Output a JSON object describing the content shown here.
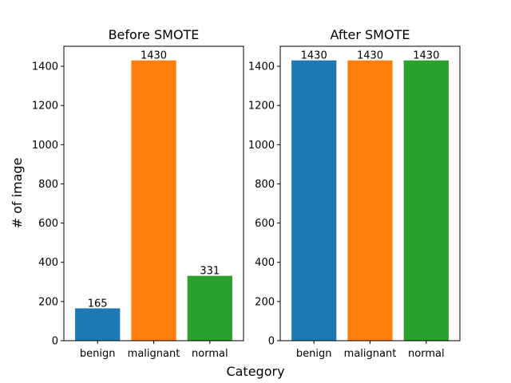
{
  "figure": {
    "ylabel": "# of image",
    "xlabel": "Category"
  },
  "chart_data": [
    {
      "type": "bar",
      "title": "Before SMOTE",
      "categories": [
        "benign",
        "malignant",
        "normal"
      ],
      "values": [
        165,
        1430,
        331
      ],
      "value_labels": [
        "165",
        "1430",
        "331"
      ],
      "colors": [
        "#1f77b4",
        "#ff7f0e",
        "#2ca02c"
      ],
      "ylim": [
        0,
        1502
      ],
      "yticks": [
        0,
        200,
        400,
        600,
        800,
        1000,
        1200,
        1400
      ],
      "ytick_labels": [
        "0",
        "200",
        "400",
        "600",
        "800",
        "1000",
        "1200",
        "1400"
      ],
      "grid": false
    },
    {
      "type": "bar",
      "title": "After SMOTE",
      "categories": [
        "benign",
        "malignant",
        "normal"
      ],
      "values": [
        1430,
        1430,
        1430
      ],
      "value_labels": [
        "1430",
        "1430",
        "1430"
      ],
      "colors": [
        "#1f77b4",
        "#ff7f0e",
        "#2ca02c"
      ],
      "ylim": [
        0,
        1502
      ],
      "yticks": [
        0,
        200,
        400,
        600,
        800,
        1000,
        1200,
        1400
      ],
      "ytick_labels": [
        "0",
        "200",
        "400",
        "600",
        "800",
        "1000",
        "1200",
        "1400"
      ],
      "grid": false
    }
  ]
}
